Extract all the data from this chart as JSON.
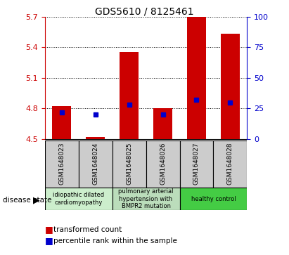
{
  "title": "GDS5610 / 8125461",
  "samples": [
    "GSM1648023",
    "GSM1648024",
    "GSM1648025",
    "GSM1648026",
    "GSM1648027",
    "GSM1648028"
  ],
  "transformed_counts": [
    4.82,
    4.52,
    5.35,
    4.8,
    5.7,
    5.53
  ],
  "percentile_ranks": [
    22,
    20,
    28,
    20,
    32,
    30
  ],
  "ylim_left": [
    4.5,
    5.7
  ],
  "ylim_right": [
    0,
    100
  ],
  "yticks_left": [
    4.5,
    4.8,
    5.1,
    5.4,
    5.7
  ],
  "yticks_right": [
    0,
    25,
    50,
    75,
    100
  ],
  "bar_color": "#cc0000",
  "dot_color": "#0000cc",
  "bar_width": 0.55,
  "disease_groups": [
    {
      "label": "idiopathic dilated\ncardiomyopathy",
      "indices": [
        0,
        1
      ],
      "color": "#cceecc"
    },
    {
      "label": "pulmonary arterial\nhypertension with\nBMPR2 mutation",
      "indices": [
        2,
        3
      ],
      "color": "#bbddbb"
    },
    {
      "label": "healthy control",
      "indices": [
        4,
        5
      ],
      "color": "#44cc44"
    }
  ],
  "disease_state_label": "disease state",
  "legend_entries": [
    "transformed count",
    "percentile rank within the sample"
  ],
  "tick_label_color_left": "#cc0000",
  "tick_label_color_right": "#0000cc",
  "grid_style": "dotted",
  "sample_bg_color": "#cccccc",
  "plot_bg_color": "#ffffff"
}
